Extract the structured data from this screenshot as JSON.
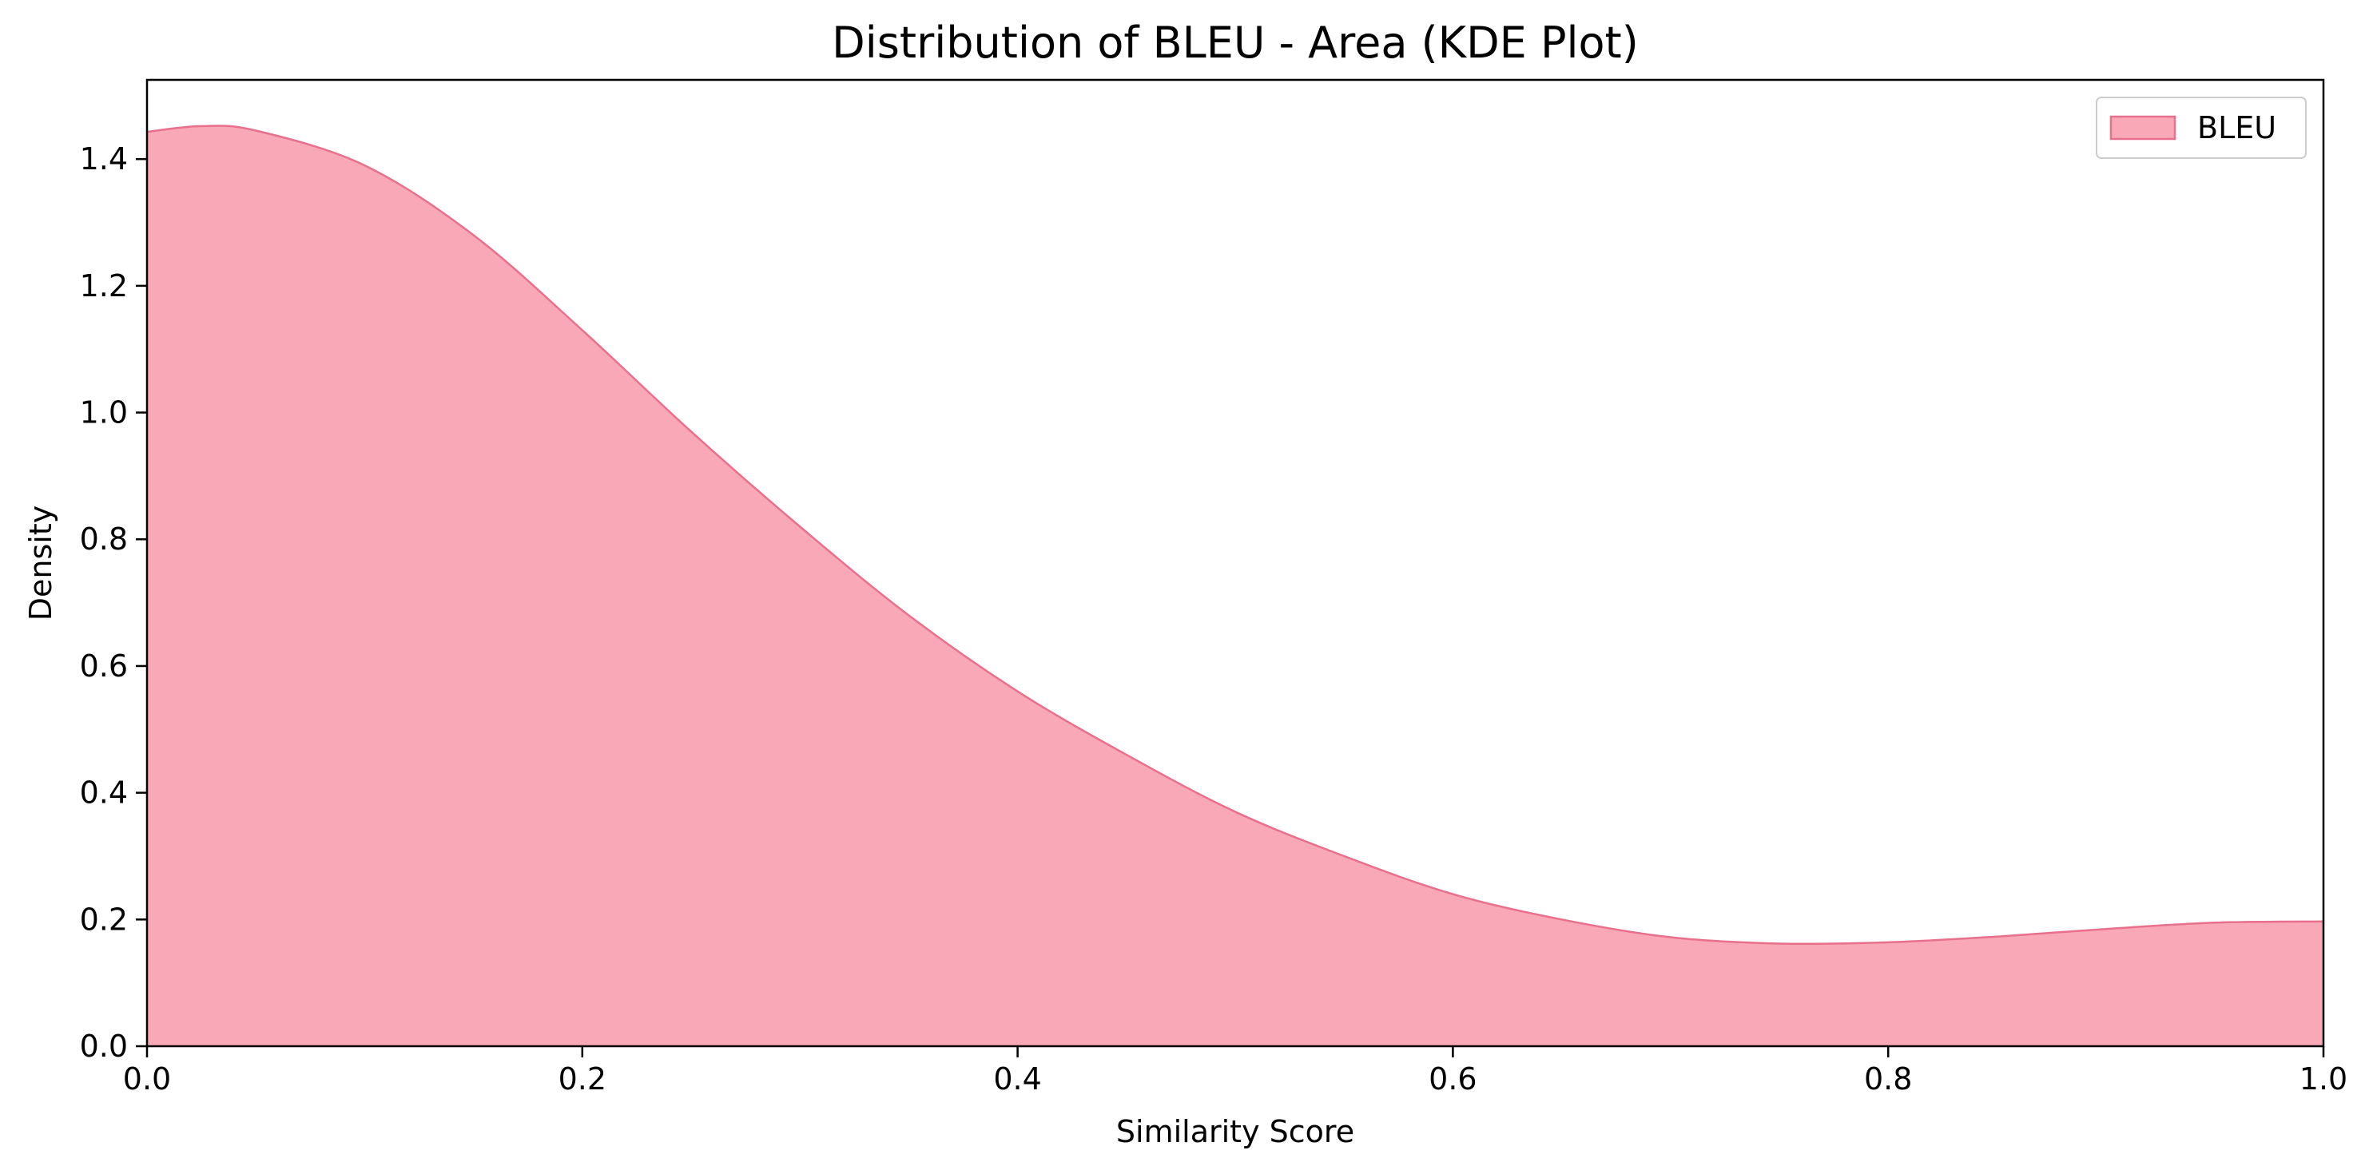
{
  "chart_data": {
    "type": "area",
    "title": "Distribution of BLEU - Area (KDE Plot)",
    "xlabel": "Similarity Score",
    "ylabel": "Density",
    "xlim": [
      0.0,
      1.0
    ],
    "ylim": [
      0.0,
      1.525
    ],
    "x_ticks": [
      "0.0",
      "0.2",
      "0.4",
      "0.6",
      "0.8",
      "1.0"
    ],
    "y_ticks": [
      "0.0",
      "0.2",
      "0.4",
      "0.6",
      "0.8",
      "1.0",
      "1.2",
      "1.4"
    ],
    "grid": false,
    "legend": {
      "position": "top-right"
    },
    "series": [
      {
        "name": "BLEU",
        "fill_color": "#f9a8b8",
        "line_color": "#e8708c",
        "x": [
          0.0,
          0.025,
          0.05,
          0.1,
          0.15,
          0.2,
          0.25,
          0.3,
          0.35,
          0.4,
          0.45,
          0.5,
          0.55,
          0.6,
          0.65,
          0.7,
          0.75,
          0.8,
          0.85,
          0.9,
          0.95,
          1.0
        ],
        "y": [
          1.443,
          1.452,
          1.445,
          1.39,
          1.28,
          1.13,
          0.97,
          0.82,
          0.68,
          0.56,
          0.46,
          0.37,
          0.3,
          0.24,
          0.2,
          0.172,
          0.162,
          0.164,
          0.173,
          0.185,
          0.195,
          0.197
        ]
      }
    ]
  }
}
